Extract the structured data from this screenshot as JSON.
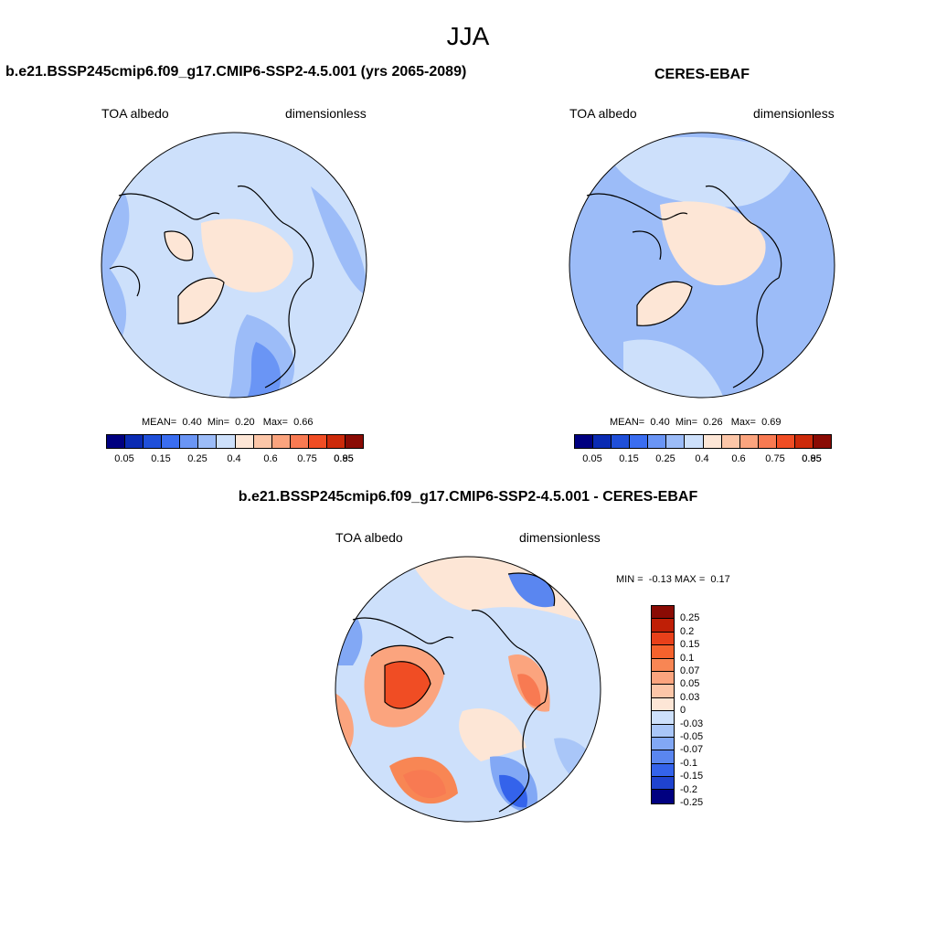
{
  "season": "JJA",
  "panels": [
    {
      "title": "b.e21.BSSP245cmip6.f09_g17.CMIP6-SSP2-4.5.001 (yrs 2065-2089)",
      "variable": "TOA albedo",
      "units": "dimensionless",
      "stats": {
        "mean_label": "MEAN=",
        "mean": "0.40",
        "min_label": "Min=",
        "min": "0.20",
        "max_label": "Max=",
        "max": "0.66"
      }
    },
    {
      "title": "CERES-EBAF",
      "variable": "TOA albedo",
      "units": "dimensionless",
      "stats": {
        "mean_label": "MEAN=",
        "mean": "0.40",
        "min_label": "Min=",
        "min": "0.26",
        "max_label": "Max=",
        "max": "0.69"
      }
    },
    {
      "title": "b.e21.BSSP245cmip6.f09_g17.CMIP6-SSP2-4.5.001 - CERES-EBAF",
      "variable": "TOA albedo",
      "units": "dimensionless",
      "stats": {
        "min_label": "MIN =",
        "min": "-0.13",
        "max_label": "MAX =",
        "max": "0.17"
      }
    }
  ],
  "colorbar_abs": {
    "colors": [
      "#000080",
      "#0a2bb3",
      "#1f4fd9",
      "#3a6df0",
      "#6a95f5",
      "#9cbcf8",
      "#cde0fb",
      "#fde6d6",
      "#fcc6a8",
      "#fba47e",
      "#f87a52",
      "#f04d24",
      "#cc2a0a",
      "#8a0b04"
    ],
    "ticks": [
      "0.05",
      "0.15",
      "0.25",
      "0.4",
      "0.6",
      "0.75",
      "0.85",
      "0.95"
    ]
  },
  "colorbar_diff": {
    "colors": [
      "#8a0b04",
      "#bf1f06",
      "#e8401a",
      "#f5622d",
      "#f88654",
      "#fba47e",
      "#fcc6a8",
      "#fde6d6",
      "#cde0fb",
      "#a9c6f8",
      "#82a8f5",
      "#5a86f0",
      "#3463eb",
      "#1f43cf",
      "#000080"
    ],
    "labels": [
      "0.25",
      "0.2",
      "0.15",
      "0.1",
      "0.07",
      "0.05",
      "0.03",
      "0",
      "-0.03",
      "-0.05",
      "-0.07",
      "-0.1",
      "-0.15",
      "-0.2",
      "-0.25"
    ]
  },
  "map_colors": {
    "bg_light_blue": "#cde0fb",
    "mid_blue": "#9cbcf8",
    "deep_blue": "#6a95f5",
    "strong_blue": "#3a6df0",
    "peach": "#fde6d6",
    "salmon": "#fba47e",
    "orange": "#f87a52",
    "red": "#f04d24"
  }
}
